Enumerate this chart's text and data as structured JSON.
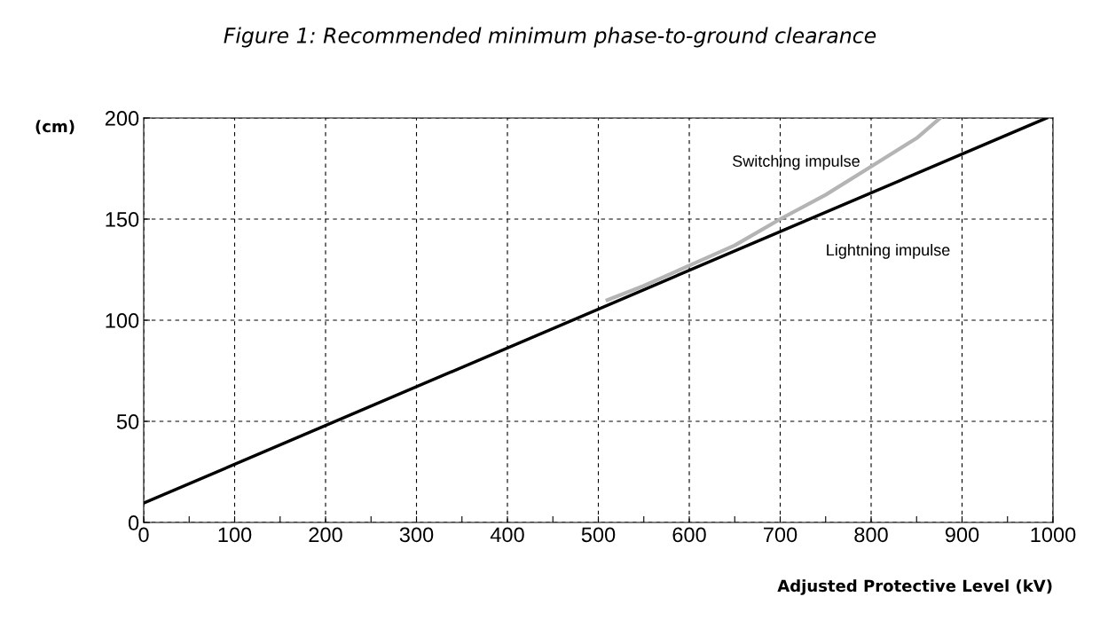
{
  "chart_data": {
    "type": "line",
    "title": "Figure 1: Recommended minimum phase-to-ground clearance",
    "xlabel": "Adjusted Protective Level (kV)",
    "ylabel": "(cm)",
    "series": [
      {
        "name": "Switching impulse",
        "color": "#b4b4b4",
        "x": [
          510,
          550,
          600,
          650,
          700,
          750,
          800,
          850,
          876
        ],
        "values": [
          110,
          117,
          127,
          137,
          150,
          162,
          176,
          190,
          200
        ]
      },
      {
        "name": "Lightning impulse",
        "color": "#000000",
        "x": [
          0,
          993
        ],
        "values": [
          9.6,
          200
        ]
      }
    ],
    "xlim": [
      0,
      1000
    ],
    "ylim": [
      0,
      200
    ],
    "xticks": [
      0,
      {
        "value": 50,
        "label": null
      },
      100,
      {
        "value": 150,
        "label": null
      },
      200,
      {
        "value": 250,
        "label": null
      },
      300,
      {
        "value": 350,
        "label": null
      },
      400,
      {
        "value": 450,
        "label": null
      },
      500,
      {
        "value": 550,
        "label": null
      },
      600,
      {
        "value": 650,
        "label": null
      },
      700,
      {
        "value": 750,
        "label": null
      },
      800,
      {
        "value": 850,
        "label": null
      },
      900,
      {
        "value": 950,
        "label": null
      },
      1000
    ],
    "yticks": [
      0,
      50,
      100,
      150,
      200
    ],
    "grid": true,
    "legend": false,
    "marker": "none",
    "line_style": "solid"
  }
}
